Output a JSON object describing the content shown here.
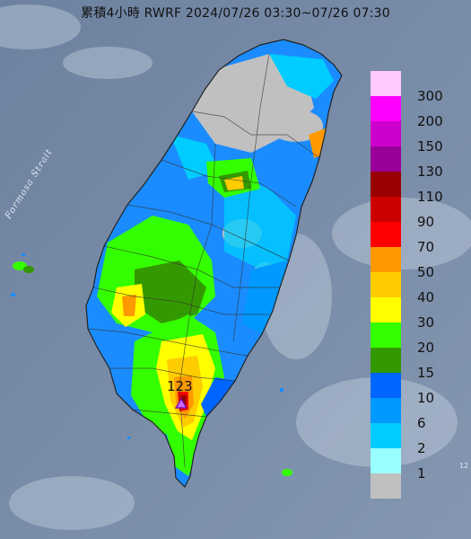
{
  "title": "累積4小時 RWRF 2024/07/26 03:30~07/26 07:30",
  "map_labels": {
    "strait": "Formosa Strait",
    "peak_value": "123",
    "edge_text": "12"
  },
  "legend": {
    "thresholds": [
      "300",
      "200",
      "150",
      "130",
      "110",
      "90",
      "70",
      "50",
      "40",
      "30",
      "20",
      "15",
      "10",
      "6",
      "2",
      "1"
    ],
    "colors": [
      "#ffc8ff",
      "#ff00ff",
      "#cc00cc",
      "#990099",
      "#990000",
      "#cc0000",
      "#ff0000",
      "#ff9900",
      "#ffcc00",
      "#ffff00",
      "#33ff00",
      "#339900",
      "#0066ff",
      "#0099ff",
      "#00ccff",
      "#99ffff",
      "#c0c0c0"
    ]
  },
  "icons": {
    "peak_marker": "triangle-icon"
  },
  "colors": {
    "sea": "#7a8ea8",
    "land_no_rain": "#c0c0c0",
    "border_lines": "#333333"
  }
}
